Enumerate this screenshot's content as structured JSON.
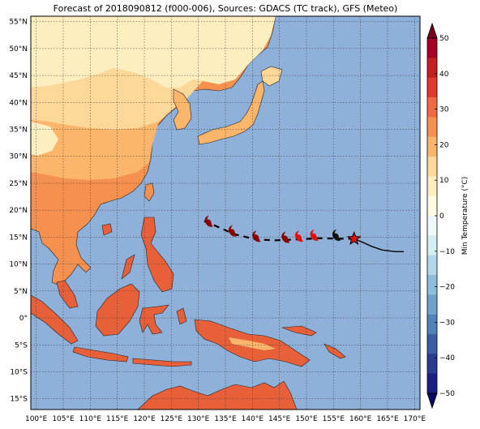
{
  "title": "Forecast of 2018090812 (f000-006), Sources: GDACS (TC track), GFS (Meteo)",
  "map": {
    "lon_range": [
      99,
      171
    ],
    "lat_range": [
      -17,
      56
    ],
    "lon_ticks": [
      {
        "value": 100,
        "label": "100°E"
      },
      {
        "value": 105,
        "label": "105°E"
      },
      {
        "value": 110,
        "label": "110°E"
      },
      {
        "value": 115,
        "label": "115°E"
      },
      {
        "value": 120,
        "label": "120°E"
      },
      {
        "value": 125,
        "label": "125°E"
      },
      {
        "value": 130,
        "label": "130°E"
      },
      {
        "value": 135,
        "label": "135°E"
      },
      {
        "value": 140,
        "label": "140°E"
      },
      {
        "value": 145,
        "label": "145°E"
      },
      {
        "value": 150,
        "label": "150°E"
      },
      {
        "value": 155,
        "label": "155°E"
      },
      {
        "value": 160,
        "label": "160°E"
      },
      {
        "value": 165,
        "label": "165°E"
      },
      {
        "value": 170,
        "label": "170°E"
      }
    ],
    "lat_ticks": [
      {
        "value": 55,
        "label": "55°N"
      },
      {
        "value": 50,
        "label": "50°N"
      },
      {
        "value": 45,
        "label": "45°N"
      },
      {
        "value": 40,
        "label": "40°N"
      },
      {
        "value": 35,
        "label": "35°N"
      },
      {
        "value": 30,
        "label": "30°N"
      },
      {
        "value": 25,
        "label": "25°N"
      },
      {
        "value": 20,
        "label": "20°N"
      },
      {
        "value": 15,
        "label": "15°N"
      },
      {
        "value": 10,
        "label": "10°N"
      },
      {
        "value": 5,
        "label": "5°N"
      },
      {
        "value": 0,
        "label": "0°"
      },
      {
        "value": -5,
        "label": "5°S"
      },
      {
        "value": -10,
        "label": "10°S"
      },
      {
        "value": -15,
        "label": "15°S"
      }
    ],
    "grid": true,
    "ocean_color": "#8fb0d8"
  },
  "chart_data": {
    "type": "map",
    "variable": "Min Temperature",
    "track": {
      "observed": [
        [
          158.8,
          14.7
        ],
        [
          160.5,
          14.0
        ],
        [
          162.0,
          13.3
        ],
        [
          164.0,
          12.6
        ],
        [
          166.5,
          12.3
        ],
        [
          168.0,
          12.3
        ]
      ],
      "forecast": [
        [
          158.8,
          14.7
        ],
        [
          156.0,
          14.7
        ],
        [
          152.3,
          14.8
        ],
        [
          149.0,
          14.6
        ],
        [
          146.5,
          14.5
        ],
        [
          144.0,
          14.4
        ],
        [
          140.5,
          14.6
        ],
        [
          136.5,
          15.6
        ],
        [
          132.5,
          17.4
        ],
        [
          131.0,
          18.0
        ]
      ],
      "current_position": [
        158.8,
        14.7
      ],
      "symbols": [
        {
          "lon": 155.6,
          "lat": 15.0,
          "color": "#111111"
        },
        {
          "lon": 151.5,
          "lat": 15.0,
          "color": "#e01010"
        },
        {
          "lon": 148.7,
          "lat": 14.8,
          "color": "#e01010"
        },
        {
          "lon": 146.2,
          "lat": 14.6,
          "color": "#8b0000"
        },
        {
          "lon": 140.8,
          "lat": 14.8,
          "color": "#8b0000"
        },
        {
          "lon": 136.4,
          "lat": 15.8,
          "color": "#8b0000"
        },
        {
          "lon": 132.0,
          "lat": 17.6,
          "color": "#8b0000"
        }
      ]
    }
  },
  "colorbar": {
    "label": "Min Temperature (°C)",
    "tick_labels": [
      "50",
      "40",
      "30",
      "20",
      "10",
      "0",
      "−10",
      "−20",
      "−30",
      "−40",
      "−50"
    ],
    "colors_top_to_bottom": [
      "#a50026",
      "#c4201f",
      "#dc3a2a",
      "#ee6a40",
      "#f6904f",
      "#fbb66b",
      "#fed898",
      "#fdeec0",
      "#fffbe2",
      "#eef8f6",
      "#d4ecf2",
      "#b2d8e8",
      "#8ebdd9",
      "#6da2cc",
      "#4f82bd",
      "#3a5ba6",
      "#2b3a93",
      "#1c1e85"
    ]
  },
  "colors": {
    "cold_land": "#fdeec0",
    "cool_land": "#fed898",
    "mild_land": "#fbb66b",
    "warm_land": "#f6904f",
    "hot_land": "#e8603a"
  }
}
